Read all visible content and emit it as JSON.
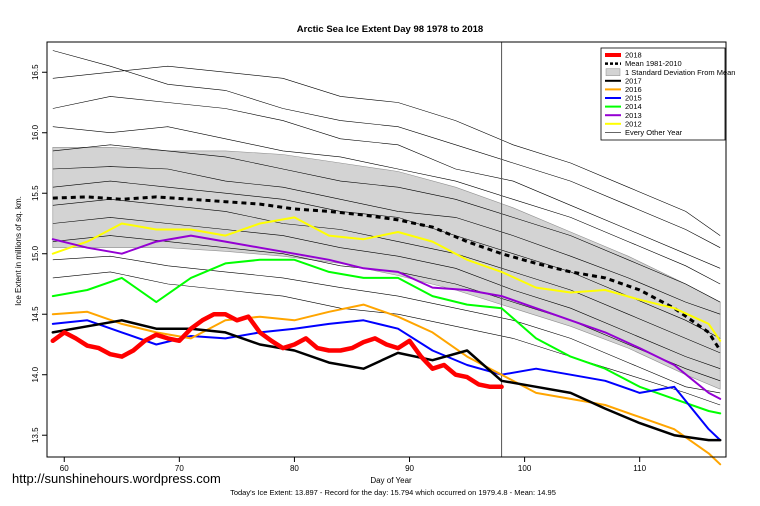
{
  "watermark": "http://sunshinehours.wordpress.com",
  "footer": "Today's Ice Extent: 13.897  - Record for the day: 15.794 which occurred on 1979.4.8  - Mean: 14.95",
  "chart_data": {
    "type": "line",
    "title": "Arctic Sea Ice Extent Day 98 1978 to 2018",
    "xlabel": "Day of Year",
    "ylabel": "Ice Extent in millions of sq. km.",
    "xlim": [
      58.5,
      117.5
    ],
    "ylim": [
      13.32,
      16.75
    ],
    "xticks": [
      "60",
      "70",
      "80",
      "90",
      "100",
      "110"
    ],
    "yticks": [
      "13.5",
      "14.0",
      "14.5",
      "15.0",
      "15.5",
      "16.0",
      "16.5"
    ],
    "vline": 98,
    "legend_position": "top-right",
    "grid": false,
    "band": {
      "name": "1 Standard Deviation From Mean",
      "x": [
        59,
        64,
        69,
        74,
        79,
        84,
        89,
        94,
        99,
        104,
        109,
        114,
        117
      ],
      "upper": [
        15.88,
        15.88,
        15.85,
        15.85,
        15.82,
        15.75,
        15.68,
        15.55,
        15.38,
        15.18,
        14.98,
        14.75,
        14.6
      ],
      "lower": [
        15.05,
        15.05,
        15.05,
        15.02,
        14.98,
        14.92,
        14.82,
        14.7,
        14.55,
        14.4,
        14.22,
        14.0,
        13.88
      ]
    },
    "mean": {
      "name": "Mean 1981-2010",
      "color": "#000000",
      "x": [
        59,
        62,
        65,
        68,
        71,
        74,
        77,
        80,
        83,
        86,
        89,
        92,
        95,
        98,
        101,
        104,
        107,
        110,
        113,
        116,
        117
      ],
      "y": [
        15.46,
        15.47,
        15.45,
        15.47,
        15.45,
        15.43,
        15.41,
        15.37,
        15.35,
        15.32,
        15.28,
        15.22,
        15.1,
        15.0,
        14.92,
        14.85,
        14.8,
        14.7,
        14.55,
        14.35,
        14.2
      ]
    },
    "series": [
      {
        "name": "2018",
        "color": "#ff0000",
        "width": 4.5,
        "x": [
          59,
          60,
          61,
          62,
          63,
          64,
          65,
          66,
          67,
          68,
          69,
          70,
          71,
          72,
          73,
          74,
          75,
          76,
          77,
          78,
          79,
          80,
          81,
          82,
          83,
          84,
          85,
          86,
          87,
          88,
          89,
          90,
          91,
          92,
          93,
          94,
          95,
          96,
          97,
          98
        ],
        "y": [
          14.28,
          14.35,
          14.3,
          14.24,
          14.22,
          14.17,
          14.15,
          14.2,
          14.28,
          14.33,
          14.3,
          14.28,
          14.38,
          14.45,
          14.5,
          14.5,
          14.45,
          14.48,
          14.35,
          14.28,
          14.22,
          14.25,
          14.3,
          14.22,
          14.2,
          14.2,
          14.22,
          14.27,
          14.3,
          14.25,
          14.22,
          14.28,
          14.15,
          14.05,
          14.08,
          14.0,
          13.98,
          13.92,
          13.9,
          13.9
        ]
      },
      {
        "name": "2017",
        "color": "#000000",
        "width": 2.5,
        "x": [
          59,
          62,
          65,
          68,
          71,
          74,
          77,
          80,
          83,
          86,
          89,
          92,
          95,
          98,
          101,
          104,
          107,
          110,
          113,
          116,
          117
        ],
        "y": [
          14.35,
          14.4,
          14.45,
          14.38,
          14.38,
          14.35,
          14.25,
          14.2,
          14.1,
          14.05,
          14.18,
          14.12,
          14.2,
          13.95,
          13.9,
          13.85,
          13.72,
          13.6,
          13.5,
          13.46,
          13.46
        ]
      },
      {
        "name": "2016",
        "color": "#ffa500",
        "width": 2,
        "x": [
          59,
          62,
          65,
          68,
          71,
          74,
          77,
          80,
          83,
          86,
          89,
          92,
          95,
          98,
          101,
          104,
          107,
          110,
          113,
          116,
          117
        ],
        "y": [
          14.5,
          14.52,
          14.42,
          14.35,
          14.3,
          14.45,
          14.48,
          14.45,
          14.52,
          14.58,
          14.48,
          14.35,
          14.15,
          14.0,
          13.85,
          13.8,
          13.75,
          13.65,
          13.55,
          13.35,
          13.26
        ]
      },
      {
        "name": "2015",
        "color": "#0000ff",
        "width": 2,
        "x": [
          59,
          62,
          65,
          68,
          71,
          74,
          77,
          80,
          83,
          86,
          89,
          92,
          95,
          98,
          101,
          104,
          107,
          110,
          113,
          116,
          117
        ],
        "y": [
          14.42,
          14.45,
          14.35,
          14.25,
          14.32,
          14.3,
          14.35,
          14.38,
          14.42,
          14.45,
          14.38,
          14.2,
          14.08,
          14.0,
          14.05,
          14.0,
          13.95,
          13.85,
          13.9,
          13.55,
          13.46
        ]
      },
      {
        "name": "2014",
        "color": "#00ff00",
        "width": 2,
        "x": [
          59,
          62,
          65,
          68,
          71,
          74,
          77,
          80,
          83,
          86,
          89,
          92,
          95,
          98,
          101,
          104,
          107,
          110,
          113,
          116,
          117
        ],
        "y": [
          14.65,
          14.7,
          14.8,
          14.6,
          14.8,
          14.92,
          14.95,
          14.95,
          14.85,
          14.8,
          14.8,
          14.65,
          14.58,
          14.55,
          14.3,
          14.15,
          14.05,
          13.9,
          13.8,
          13.7,
          13.68
        ]
      },
      {
        "name": "2013",
        "color": "#9400d3",
        "width": 2,
        "x": [
          59,
          62,
          65,
          68,
          71,
          74,
          77,
          80,
          83,
          86,
          89,
          92,
          95,
          98,
          101,
          104,
          107,
          110,
          113,
          116,
          117
        ],
        "y": [
          15.12,
          15.05,
          15.0,
          15.1,
          15.15,
          15.1,
          15.05,
          15.0,
          14.95,
          14.88,
          14.85,
          14.72,
          14.7,
          14.65,
          14.55,
          14.45,
          14.35,
          14.22,
          14.08,
          13.85,
          13.8
        ]
      },
      {
        "name": "2012",
        "color": "#ffff00",
        "width": 2,
        "x": [
          59,
          62,
          65,
          68,
          71,
          74,
          77,
          80,
          83,
          86,
          89,
          92,
          95,
          98,
          101,
          104,
          107,
          110,
          113,
          116,
          117
        ],
        "y": [
          15.0,
          15.1,
          15.25,
          15.2,
          15.2,
          15.15,
          15.25,
          15.3,
          15.15,
          15.12,
          15.18,
          15.1,
          14.95,
          14.85,
          14.72,
          14.68,
          14.7,
          14.62,
          14.55,
          14.42,
          14.28
        ]
      }
    ],
    "other_years": {
      "name": "Every Other Year",
      "color": "#000000",
      "x": [
        59,
        64,
        69,
        74,
        79,
        84,
        89,
        94,
        99,
        104,
        109,
        114,
        117
      ],
      "lines": [
        [
          16.68,
          16.55,
          16.4,
          16.35,
          16.2,
          16.1,
          16.05,
          15.9,
          15.75,
          15.6,
          15.4,
          15.2,
          15.05
        ],
        [
          16.45,
          16.5,
          16.55,
          16.5,
          16.45,
          16.3,
          16.25,
          16.1,
          15.9,
          15.75,
          15.55,
          15.35,
          15.15
        ],
        [
          16.2,
          16.3,
          16.25,
          16.2,
          16.1,
          15.95,
          15.9,
          15.7,
          15.6,
          15.4,
          15.2,
          15.0,
          14.88
        ],
        [
          16.05,
          16.0,
          16.05,
          15.95,
          15.85,
          15.8,
          15.7,
          15.6,
          15.45,
          15.3,
          15.1,
          14.9,
          14.75
        ],
        [
          15.85,
          15.9,
          15.85,
          15.8,
          15.7,
          15.6,
          15.55,
          15.45,
          15.3,
          15.15,
          14.95,
          14.75,
          14.6
        ],
        [
          15.7,
          15.72,
          15.7,
          15.6,
          15.55,
          15.45,
          15.35,
          15.3,
          15.15,
          14.98,
          14.8,
          14.6,
          14.5
        ],
        [
          15.55,
          15.6,
          15.55,
          15.5,
          15.45,
          15.35,
          15.3,
          15.15,
          15.0,
          14.85,
          14.65,
          14.45,
          14.3
        ],
        [
          15.4,
          15.45,
          15.4,
          15.35,
          15.25,
          15.2,
          15.1,
          15.0,
          14.85,
          14.7,
          14.5,
          14.3,
          14.18
        ],
        [
          15.25,
          15.3,
          15.25,
          15.2,
          15.15,
          15.05,
          14.98,
          14.88,
          14.7,
          14.55,
          14.35,
          14.15,
          14.05
        ],
        [
          15.1,
          15.15,
          15.1,
          15.05,
          15.0,
          14.9,
          14.85,
          14.75,
          14.6,
          14.45,
          14.25,
          14.05,
          13.95
        ],
        [
          14.95,
          14.98,
          14.9,
          14.85,
          14.8,
          14.72,
          14.65,
          14.55,
          14.45,
          14.3,
          14.1,
          13.9,
          13.85
        ],
        [
          14.8,
          14.85,
          14.75,
          14.7,
          14.65,
          14.55,
          14.5,
          14.4,
          14.3,
          14.15,
          14.0,
          13.85,
          13.75
        ]
      ]
    }
  }
}
